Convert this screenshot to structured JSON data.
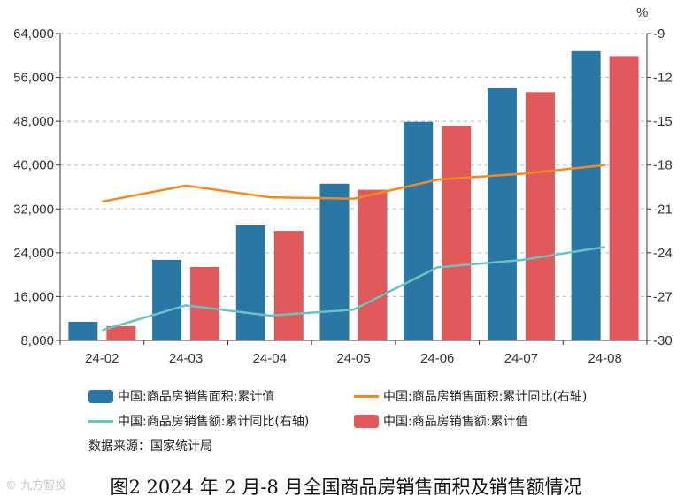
{
  "chart_data": {
    "type": "bar+line",
    "categories": [
      "24-02",
      "24-03",
      "24-04",
      "24-05",
      "24-06",
      "24-07",
      "24-08"
    ],
    "bar_series": [
      {
        "name": "中国:商品房销售面积:累计值",
        "color": "#2a76a4",
        "values": [
          11400,
          22700,
          29000,
          36600,
          47900,
          54100,
          60800
        ]
      },
      {
        "name": "中国:商品房销售额:累计值",
        "color": "#e05a5c",
        "values": [
          10600,
          21400,
          28000,
          35500,
          47100,
          53300,
          59900
        ]
      }
    ],
    "line_series": [
      {
        "name": "中国:商品房销售面积:累计同比(右轴)",
        "color": "#f08a24",
        "values": [
          -20.5,
          -19.4,
          -20.2,
          -20.3,
          -19.0,
          -18.6,
          -18.0
        ]
      },
      {
        "name": "中国:商品房销售额:累计同比(右轴)",
        "color": "#6bc2c2",
        "values": [
          -29.3,
          -27.6,
          -28.3,
          -27.9,
          -25.0,
          -24.5,
          -23.6
        ]
      }
    ],
    "left_axis": {
      "min": 8000,
      "max": 64000,
      "ticks": [
        "8,000",
        "16,000",
        "24,000",
        "32,000",
        "40,000",
        "48,000",
        "56,000",
        "64,000"
      ]
    },
    "right_axis": {
      "min": -30,
      "max": -9,
      "unit": "%",
      "ticks": [
        "-30",
        "-27",
        "-24",
        "-21",
        "-18",
        "-15",
        "-12",
        "-9"
      ]
    },
    "legend_rows": [
      [
        "中国:商品房销售面积:累计值",
        "中国:商品房销售面积:累计同比(右轴)"
      ],
      [
        "中国:商品房销售额:累计同比(右轴)",
        "中国:商品房销售额:累计值"
      ]
    ]
  },
  "source_text": "数据来源：国家统计局",
  "caption": "图2  2024 年 2 月-8 月全国商品房销售面积及销售额情况",
  "watermark": "© 九方智投"
}
